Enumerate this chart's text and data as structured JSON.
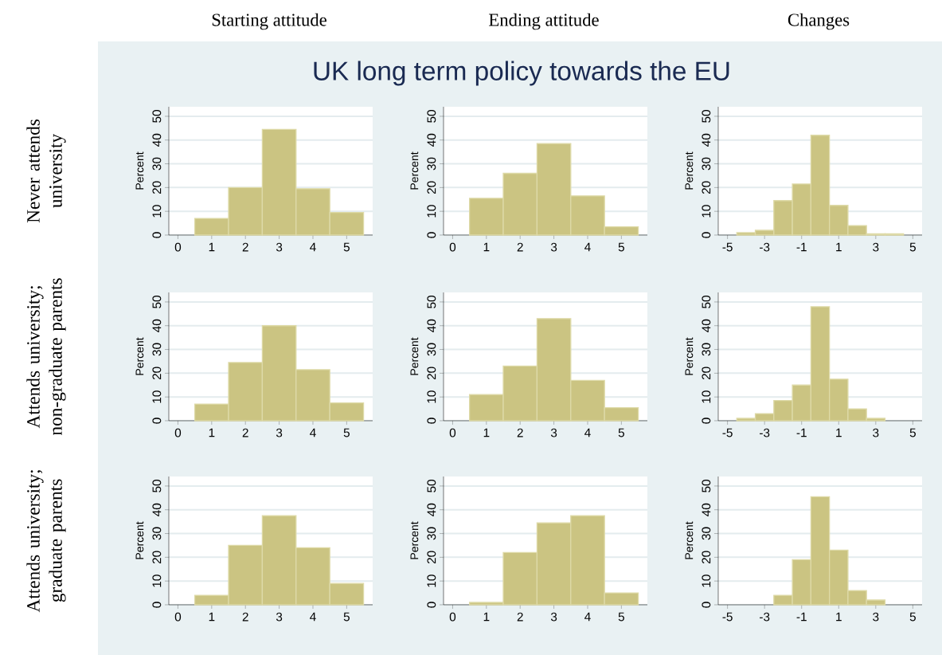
{
  "chart_data": [
    {
      "type": "histogram",
      "title": "Starting attitude",
      "ylabel": "Percent",
      "annotations": [
        "Never attends university"
      ],
      "bins": [
        0.5,
        1.5,
        2.5,
        3.5,
        4.5,
        5.5
      ],
      "values": [
        7,
        20,
        44.5,
        19.5,
        9.5
      ],
      "color": "#cbc482",
      "xlim": [
        -0.27,
        5.77
      ],
      "xticks": [
        0,
        1,
        2,
        3,
        4,
        5
      ],
      "ylim": [
        0,
        54
      ],
      "yticks": [
        0,
        10,
        20,
        30,
        40,
        50
      ],
      "grid": "y"
    },
    {
      "type": "histogram",
      "title": "Ending attitude",
      "subtitle": "UK long term policy towards the EU",
      "ylabel": "Percent",
      "bins": [
        0.5,
        1.5,
        2.5,
        3.5,
        4.5,
        5.5
      ],
      "values": [
        15.5,
        26,
        38.5,
        16.5,
        3.5
      ],
      "color": "#cbc482",
      "xlim": [
        -0.27,
        5.77
      ],
      "xticks": [
        0,
        1,
        2,
        3,
        4,
        5
      ],
      "ylim": [
        0,
        54
      ],
      "yticks": [
        0,
        10,
        20,
        30,
        40,
        50
      ],
      "grid": "y"
    },
    {
      "type": "histogram",
      "title": "Changes",
      "ylabel": "Percent",
      "bins": [
        -4.5,
        -3.5,
        -2.5,
        -1.5,
        -0.5,
        0.5,
        1.5,
        2.5,
        3.5,
        4.5
      ],
      "values": [
        1,
        2,
        14.5,
        21.5,
        42,
        12.5,
        4,
        0.5,
        0.5
      ],
      "color": "#cbc482",
      "xlim": [
        -5.5,
        5.5
      ],
      "xticks": [
        -5,
        -3,
        -1,
        1,
        3,
        5
      ],
      "ylim": [
        0,
        54
      ],
      "yticks": [
        0,
        10,
        20,
        30,
        40,
        50
      ],
      "grid": "y"
    },
    {
      "type": "histogram",
      "ylabel": "Percent",
      "annotations": [
        "Attends university; non-graduate parents"
      ],
      "bins": [
        0.5,
        1.5,
        2.5,
        3.5,
        4.5,
        5.5
      ],
      "values": [
        7,
        24.5,
        40,
        21.5,
        7.5
      ],
      "color": "#cbc482",
      "xlim": [
        -0.27,
        5.77
      ],
      "xticks": [
        0,
        1,
        2,
        3,
        4,
        5
      ],
      "ylim": [
        0,
        54
      ],
      "yticks": [
        0,
        10,
        20,
        30,
        40,
        50
      ],
      "grid": "y"
    },
    {
      "type": "histogram",
      "ylabel": "Percent",
      "bins": [
        0.5,
        1.5,
        2.5,
        3.5,
        4.5,
        5.5
      ],
      "values": [
        11,
        23,
        43,
        17,
        5.5
      ],
      "color": "#cbc482",
      "xlim": [
        -0.27,
        5.77
      ],
      "xticks": [
        0,
        1,
        2,
        3,
        4,
        5
      ],
      "ylim": [
        0,
        54
      ],
      "yticks": [
        0,
        10,
        20,
        30,
        40,
        50
      ],
      "grid": "y"
    },
    {
      "type": "histogram",
      "ylabel": "Percent",
      "bins": [
        -4.5,
        -3.5,
        -2.5,
        -1.5,
        -0.5,
        0.5,
        1.5,
        2.5,
        3.5
      ],
      "values": [
        1,
        3,
        8.5,
        15,
        48,
        17.5,
        5,
        1
      ],
      "color": "#cbc482",
      "xlim": [
        -5.5,
        5.5
      ],
      "xticks": [
        -5,
        -3,
        -1,
        1,
        3,
        5
      ],
      "ylim": [
        0,
        54
      ],
      "yticks": [
        0,
        10,
        20,
        30,
        40,
        50
      ],
      "grid": "y"
    },
    {
      "type": "histogram",
      "ylabel": "Percent",
      "annotations": [
        "Attends university; graduate parents"
      ],
      "bins": [
        0.5,
        1.5,
        2.5,
        3.5,
        4.5,
        5.5
      ],
      "values": [
        4,
        25,
        37.5,
        24,
        9
      ],
      "color": "#cbc482",
      "xlim": [
        -0.27,
        5.77
      ],
      "xticks": [
        0,
        1,
        2,
        3,
        4,
        5
      ],
      "ylim": [
        0,
        54
      ],
      "yticks": [
        0,
        10,
        20,
        30,
        40,
        50
      ],
      "grid": "y"
    },
    {
      "type": "histogram",
      "ylabel": "Percent",
      "bins": [
        0.5,
        1.5,
        2.5,
        3.5,
        4.5,
        5.5
      ],
      "values": [
        1,
        22,
        34.5,
        37.5,
        5
      ],
      "color": "#cbc482",
      "xlim": [
        -0.27,
        5.77
      ],
      "xticks": [
        0,
        1,
        2,
        3,
        4,
        5
      ],
      "ylim": [
        0,
        54
      ],
      "yticks": [
        0,
        10,
        20,
        30,
        40,
        50
      ],
      "grid": "y"
    },
    {
      "type": "histogram",
      "ylabel": "Percent",
      "bins": [
        -2.5,
        -1.5,
        -0.5,
        0.5,
        1.5,
        2.5,
        3.5
      ],
      "values": [
        4,
        19,
        45.5,
        23,
        6,
        2
      ],
      "color": "#cbc482",
      "xlim": [
        -5.5,
        5.5
      ],
      "xticks": [
        -5,
        -3,
        -1,
        1,
        3,
        5
      ],
      "ylim": [
        0,
        54
      ],
      "yticks": [
        0,
        10,
        20,
        30,
        40,
        50
      ],
      "grid": "y"
    }
  ]
}
